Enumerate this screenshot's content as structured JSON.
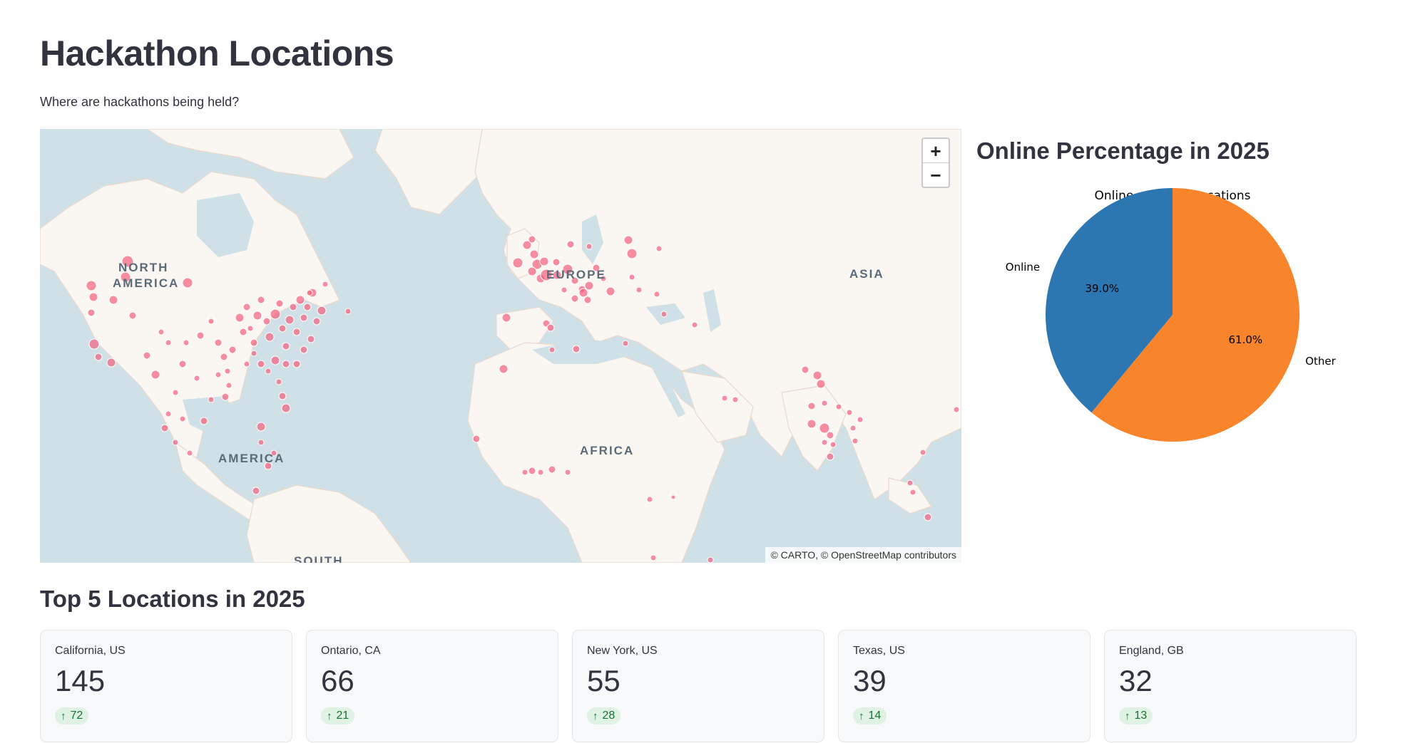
{
  "page": {
    "title": "Hackathon Locations",
    "subtitle": "Where are hackathons being held?"
  },
  "map": {
    "attribution": "© CARTO, © OpenStreetMap contributors",
    "zoom_in_label": "+",
    "zoom_out_label": "−",
    "region_labels": {
      "north_america_1": "NORTH",
      "north_america_2": "AMERICA",
      "europe": "EUROPE",
      "asia": "ASIA",
      "africa": "AFRICA",
      "america": "AMERICA",
      "south": "SOUTH"
    },
    "colors": {
      "water": "#cfe1e6",
      "land": "#faf6f2",
      "marker": "#f2607e"
    }
  },
  "pie_section": {
    "heading": "Online Percentage in 2025",
    "chart_data": {
      "type": "pie",
      "title": "Online vs Other Locations",
      "categories": [
        "Online",
        "Other"
      ],
      "values": [
        39.0,
        61.0
      ],
      "value_labels": [
        "39.0%",
        "61.0%"
      ],
      "colors": [
        "#2c77b1",
        "#f8842c"
      ]
    }
  },
  "top_locations": {
    "heading": "Top 5 Locations in 2025",
    "cards": [
      {
        "label": "California, US",
        "value": "145",
        "delta": "72"
      },
      {
        "label": "Ontario, CA",
        "value": "66",
        "delta": "21"
      },
      {
        "label": "New York, US",
        "value": "55",
        "delta": "28"
      },
      {
        "label": "Texas, US",
        "value": "39",
        "delta": "14"
      },
      {
        "label": "England, GB",
        "value": "32",
        "delta": "13"
      }
    ]
  }
}
